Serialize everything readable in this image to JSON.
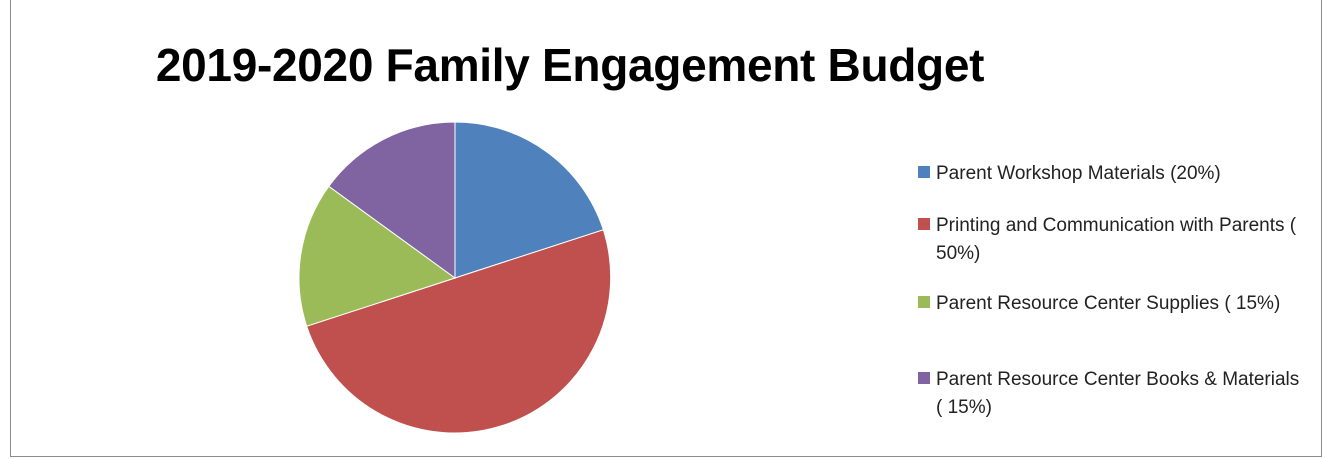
{
  "colors": {
    "workshop": "#4f81bd",
    "printing": "#c0504d",
    "supplies": "#9bbb59",
    "books": "#8064a2"
  },
  "chart_data": {
    "type": "pie",
    "title": "2019-2020 Family Engagement Budget",
    "legend_position": "right",
    "slices": [
      {
        "label": "Parent Workshop Materials (20%)",
        "value": 20,
        "color": "#4f81bd"
      },
      {
        "label": "Printing and Communication with Parents ( 50%)",
        "value": 50,
        "color": "#c0504d"
      },
      {
        "label": "Parent Resource Center Supplies ( 15%)",
        "value": 15,
        "color": "#9bbb59"
      },
      {
        "label": "Parent Resource Center Books & Materials ( 15%)",
        "value": 15,
        "color": "#8064a2"
      }
    ]
  }
}
